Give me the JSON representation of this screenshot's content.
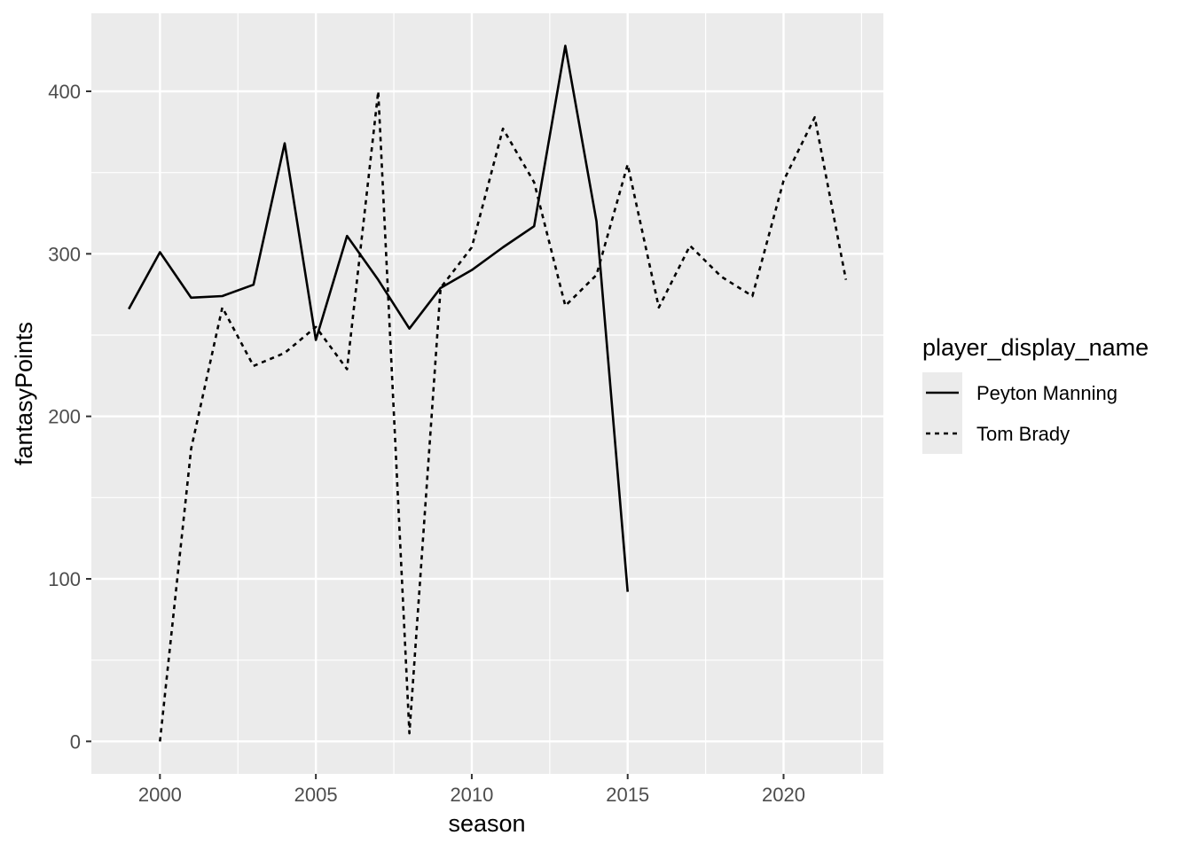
{
  "colors": {
    "panel_background": "#ebebeb",
    "grid_major": "#ffffff",
    "grid_minor": "#f5f5f5",
    "line": "#000000",
    "tick_text": "#4d4d4d",
    "legend_key_background": "#ebebeb"
  },
  "chart_data": {
    "type": "line",
    "title": "",
    "xlabel": "season",
    "ylabel": "fantasyPoints",
    "xlim": [
      1997.8,
      2023.2
    ],
    "ylim": [
      -20,
      448
    ],
    "x_ticks": [
      2000,
      2005,
      2010,
      2015,
      2020
    ],
    "x_tick_labels": [
      "2000",
      "2005",
      "2010",
      "2015",
      "2020"
    ],
    "y_ticks": [
      0,
      100,
      200,
      300,
      400
    ],
    "y_tick_labels": [
      "0",
      "100",
      "200",
      "300",
      "400"
    ],
    "grid": true,
    "legend": {
      "title": "player_display_name",
      "position": "right"
    },
    "series": [
      {
        "name": "Peyton Manning",
        "linetype": "solid",
        "x": [
          1999,
          2000,
          2001,
          2002,
          2003,
          2004,
          2005,
          2006,
          2007,
          2008,
          2009,
          2010,
          2011,
          2012,
          2013,
          2014,
          2015
        ],
        "values": [
          266,
          301,
          273,
          274,
          281,
          368,
          247,
          311,
          284,
          254,
          279,
          290,
          304,
          317,
          428,
          320,
          92
        ]
      },
      {
        "name": "Tom Brady",
        "linetype": "dashed",
        "x": [
          2000,
          2001,
          2002,
          2003,
          2004,
          2005,
          2006,
          2007,
          2008,
          2009,
          2010,
          2011,
          2012,
          2013,
          2014,
          2015,
          2016,
          2017,
          2018,
          2019,
          2020,
          2021,
          2022
        ],
        "values": [
          0,
          180,
          267,
          231,
          239,
          255,
          229,
          400,
          5,
          279,
          304,
          377,
          344,
          268,
          287,
          355,
          267,
          305,
          286,
          274,
          345,
          384,
          284
        ]
      }
    ]
  }
}
